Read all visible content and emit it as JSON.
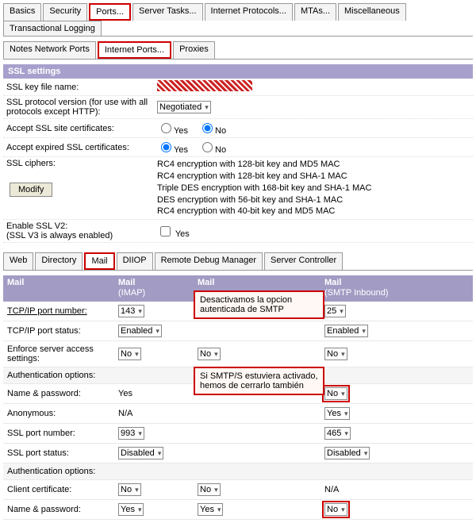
{
  "topTabs": [
    "Basics",
    "Security",
    "Ports...",
    "Server Tasks...",
    "Internet Protocols...",
    "MTAs...",
    "Miscellaneous",
    "Transactional Logging"
  ],
  "topActiveIdx": 2,
  "subTabs1": [
    "Notes Network Ports",
    "Internet Ports...",
    "Proxies"
  ],
  "subTabs1ActiveIdx": 1,
  "ssl": {
    "header": "SSL settings",
    "keyfile_lbl": "SSL key file name:",
    "proto_lbl": "SSL protocol version (for use with all protocols except HTTP):",
    "proto_val": "Negotiated",
    "site_lbl": "Accept SSL site certificates:",
    "site_val": "No",
    "exp_lbl": "Accept expired SSL certificates:",
    "exp_val": "Yes",
    "ciphers_lbl": "SSL ciphers:",
    "ciphers": [
      "RC4 encryption with 128-bit key and MD5 MAC",
      "RC4 encryption with 128-bit key and SHA-1 MAC",
      "Triple DES encryption with 168-bit key and SHA-1 MAC",
      "DES encryption with 56-bit key and SHA-1 MAC",
      "RC4 encryption with 40-bit key and MD5 MAC"
    ],
    "modify": "Modify",
    "v2_lbl": "Enable SSL V2:",
    "v2_note": "(SSL V3 is always enabled)",
    "v2_val": "Yes",
    "yes": "Yes",
    "no": "No"
  },
  "subTabs2": [
    "Web",
    "Directory",
    "Mail",
    "DIIOP",
    "Remote Debug Manager",
    "Server Controller"
  ],
  "subTabs2ActiveIdx": 2,
  "mail": {
    "headers": {
      "main": "Mail",
      "imap": "Mail",
      "imap_sub": "(IMAP)",
      "pop": "Mail",
      "smtp": "Mail",
      "smtp_sub": "(SMTP Inbound)"
    },
    "rows": {
      "tcp_port_lbl": "TCP/IP port number:",
      "tcp_status_lbl": "TCP/IP port status:",
      "enforce_lbl": "Enforce server access settings:",
      "auth_lbl": "Authentication options:",
      "name_pw_lbl": "Name & password:",
      "anon_lbl": "Anonymous:",
      "ssl_port_lbl": "SSL port number:",
      "ssl_status_lbl": "SSL port status:",
      "client_cert_lbl": "Client certificate:"
    },
    "vals": {
      "imap_port": "143",
      "imap_status": "Enabled",
      "imap_enforce": "No",
      "imap_namepw": "Yes",
      "imap_anon": "N/A",
      "imap_sslport": "993",
      "imap_sslstatus": "Disabled",
      "imap_clientcert": "No",
      "imap_namepw2": "Yes",
      "pop_enforce": "No",
      "pop_clientcert": "No",
      "pop_namepw2": "Yes",
      "smtp_port": "25",
      "smtp_status": "Enabled",
      "smtp_enforce": "No",
      "smtp_namepw": "No",
      "smtp_anon": "Yes",
      "smtp_sslport": "465",
      "smtp_sslstatus": "Disabled",
      "smtp_clientcert": "N/A",
      "smtp_namepw2": "No"
    }
  },
  "callouts": {
    "a": "Desactivamos la opcion autenticada de SMTP",
    "b": "Si SMTP/S estuviera activado, hemos de cerrarlo también"
  }
}
